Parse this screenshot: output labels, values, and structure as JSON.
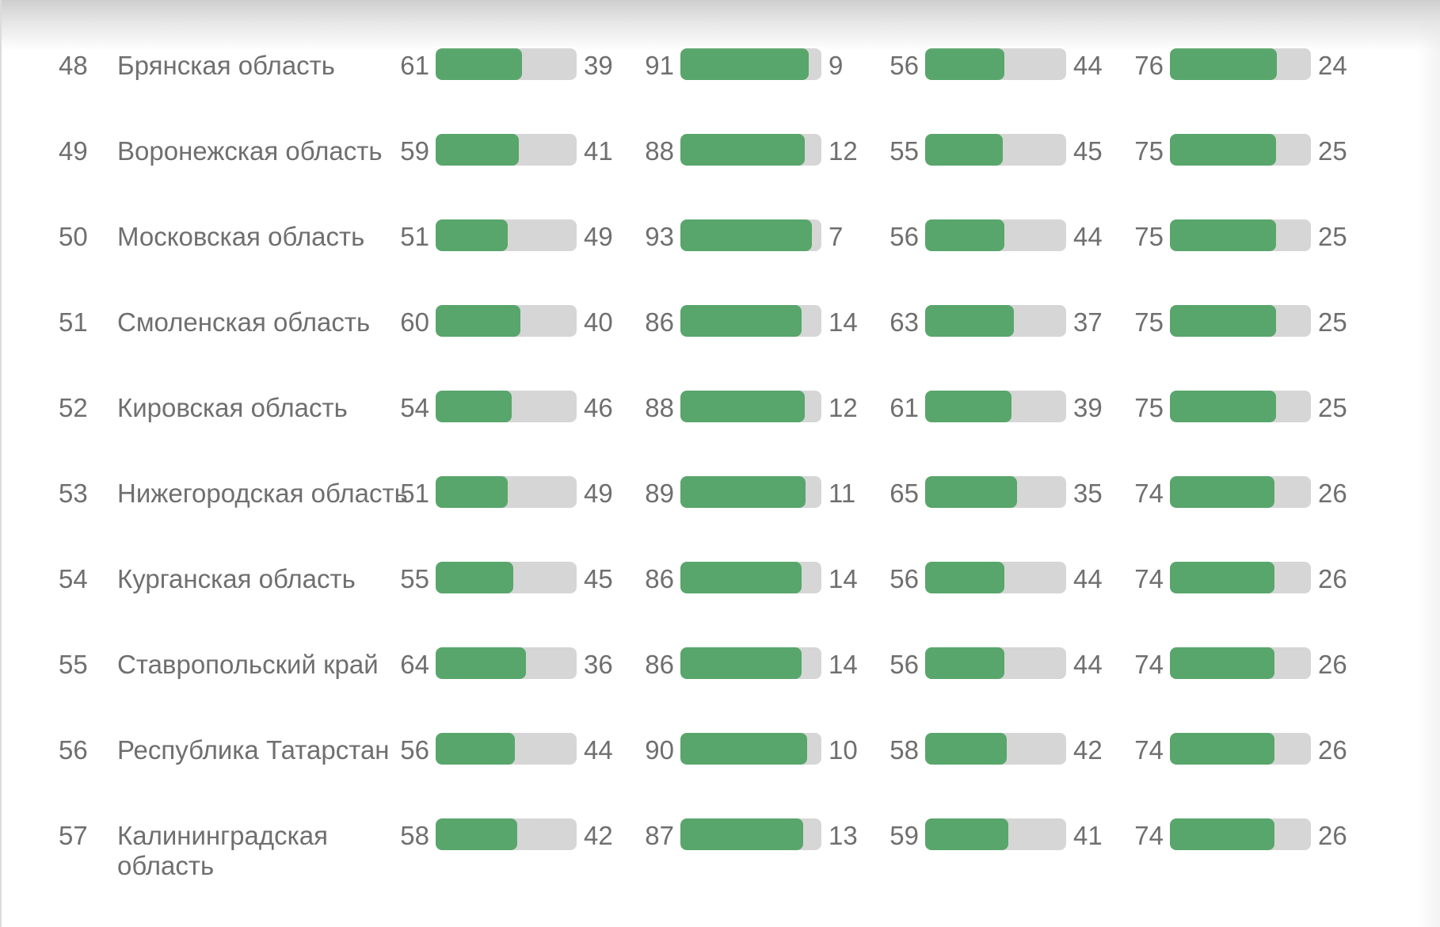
{
  "colors": {
    "bar_fill": "#58a66b",
    "bar_track": "#d6d6d6",
    "text": "#6f6f6f"
  },
  "rows": [
    {
      "rank": "48",
      "region": "Брянская область",
      "metrics": [
        {
          "left": "61",
          "right": "39",
          "fill_pct": 61
        },
        {
          "left": "91",
          "right": "9",
          "fill_pct": 91
        },
        {
          "left": "56",
          "right": "44",
          "fill_pct": 56
        },
        {
          "left": "76",
          "right": "24",
          "fill_pct": 76
        }
      ]
    },
    {
      "rank": "49",
      "region": "Воронежская область",
      "metrics": [
        {
          "left": "59",
          "right": "41",
          "fill_pct": 59
        },
        {
          "left": "88",
          "right": "12",
          "fill_pct": 88
        },
        {
          "left": "55",
          "right": "45",
          "fill_pct": 55
        },
        {
          "left": "75",
          "right": "25",
          "fill_pct": 75
        }
      ]
    },
    {
      "rank": "50",
      "region": "Московская область",
      "metrics": [
        {
          "left": "51",
          "right": "49",
          "fill_pct": 51
        },
        {
          "left": "93",
          "right": "7",
          "fill_pct": 93
        },
        {
          "left": "56",
          "right": "44",
          "fill_pct": 56
        },
        {
          "left": "75",
          "right": "25",
          "fill_pct": 75
        }
      ]
    },
    {
      "rank": "51",
      "region": "Смоленская область",
      "metrics": [
        {
          "left": "60",
          "right": "40",
          "fill_pct": 60
        },
        {
          "left": "86",
          "right": "14",
          "fill_pct": 86
        },
        {
          "left": "63",
          "right": "37",
          "fill_pct": 63
        },
        {
          "left": "75",
          "right": "25",
          "fill_pct": 75
        }
      ]
    },
    {
      "rank": "52",
      "region": "Кировская область",
      "metrics": [
        {
          "left": "54",
          "right": "46",
          "fill_pct": 54
        },
        {
          "left": "88",
          "right": "12",
          "fill_pct": 88
        },
        {
          "left": "61",
          "right": "39",
          "fill_pct": 61
        },
        {
          "left": "75",
          "right": "25",
          "fill_pct": 75
        }
      ]
    },
    {
      "rank": "53",
      "region": "Нижегородская область",
      "metrics": [
        {
          "left": "51",
          "right": "49",
          "fill_pct": 51
        },
        {
          "left": "89",
          "right": "11",
          "fill_pct": 89
        },
        {
          "left": "65",
          "right": "35",
          "fill_pct": 65
        },
        {
          "left": "74",
          "right": "26",
          "fill_pct": 74
        }
      ]
    },
    {
      "rank": "54",
      "region": "Курганская область",
      "metrics": [
        {
          "left": "55",
          "right": "45",
          "fill_pct": 55
        },
        {
          "left": "86",
          "right": "14",
          "fill_pct": 86
        },
        {
          "left": "56",
          "right": "44",
          "fill_pct": 56
        },
        {
          "left": "74",
          "right": "26",
          "fill_pct": 74
        }
      ]
    },
    {
      "rank": "55",
      "region": "Ставропольский край",
      "metrics": [
        {
          "left": "64",
          "right": "36",
          "fill_pct": 64
        },
        {
          "left": "86",
          "right": "14",
          "fill_pct": 86
        },
        {
          "left": "56",
          "right": "44",
          "fill_pct": 56
        },
        {
          "left": "74",
          "right": "26",
          "fill_pct": 74
        }
      ]
    },
    {
      "rank": "56",
      "region": "Республика Татарстан",
      "metrics": [
        {
          "left": "56",
          "right": "44",
          "fill_pct": 56
        },
        {
          "left": "90",
          "right": "10",
          "fill_pct": 90
        },
        {
          "left": "58",
          "right": "42",
          "fill_pct": 58
        },
        {
          "left": "74",
          "right": "26",
          "fill_pct": 74
        }
      ]
    },
    {
      "rank": "57",
      "region": "Калининградская область",
      "metrics": [
        {
          "left": "58",
          "right": "42",
          "fill_pct": 58
        },
        {
          "left": "87",
          "right": "13",
          "fill_pct": 87
        },
        {
          "left": "59",
          "right": "41",
          "fill_pct": 59
        },
        {
          "left": "74",
          "right": "26",
          "fill_pct": 74
        }
      ]
    }
  ]
}
